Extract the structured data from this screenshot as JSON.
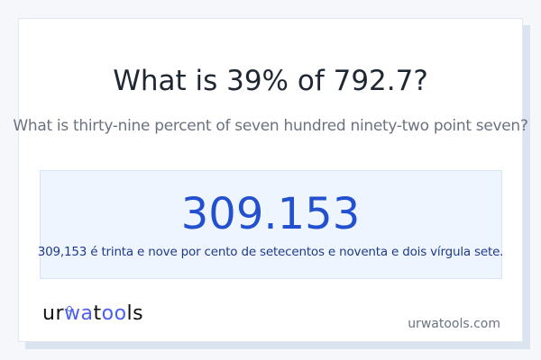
{
  "title": "What is 39% of 792.7?",
  "subtitle": "What is thirty-nine percent of seven hundred ninety-two point seven?",
  "result": {
    "value": "309.153",
    "words": "309,153 é trinta e nove por cento de setecentos e noventa e dois vírgula sete."
  },
  "footer": {
    "logo": "urwatools",
    "logo_parts": [
      "ur",
      "wa",
      "t",
      "oo",
      "ls"
    ],
    "site": "urwatools.com"
  },
  "colors": {
    "accent": "#2250cf",
    "result_bg": "#eef5ff",
    "logo_accent": "#4b5ff0"
  }
}
